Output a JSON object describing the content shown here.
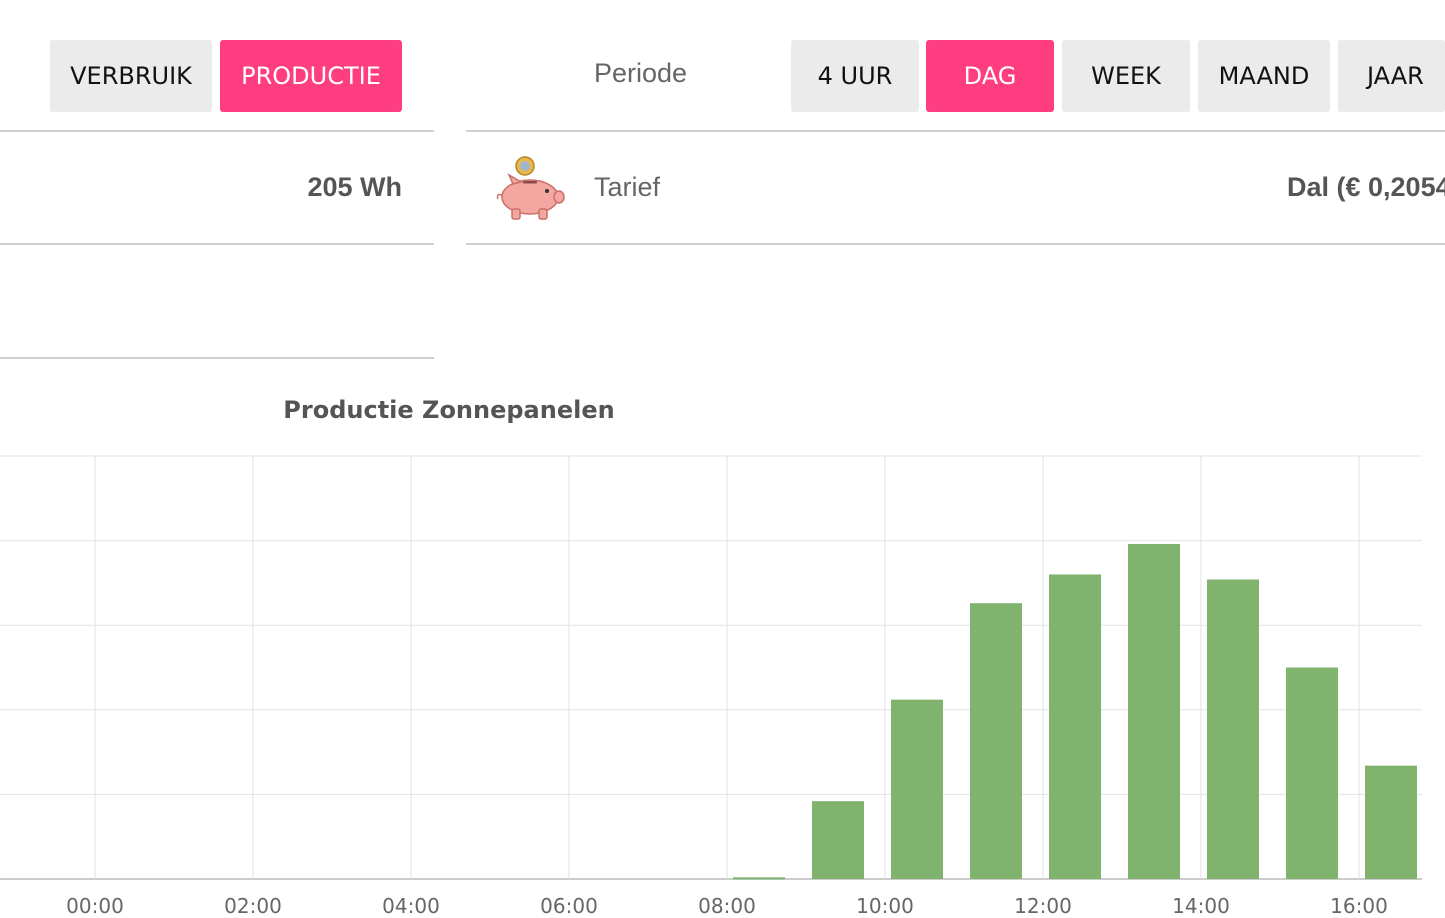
{
  "mode_tabs": [
    {
      "label": "VERBRUIK",
      "active": false
    },
    {
      "label": "PRODUCTIE",
      "active": true
    }
  ],
  "periode": {
    "label": "Periode",
    "options": [
      {
        "label": "4 UUR",
        "active": false
      },
      {
        "label": "DAG",
        "active": true
      },
      {
        "label": "WEEK",
        "active": false
      },
      {
        "label": "MAAND",
        "active": false
      },
      {
        "label": "JAAR",
        "active": false
      }
    ]
  },
  "summary": {
    "value": "205 Wh"
  },
  "tarief": {
    "icon": "piggy-bank-icon",
    "label": "Tarief",
    "value": "Dal (€ 0,2054"
  },
  "colors": {
    "accent": "#ff3d81",
    "bar": "#80b36e",
    "button_bg": "#ebebeb",
    "grid": "#e2e2e2"
  },
  "chart_data": {
    "type": "bar",
    "title": "Productie Zonnepanelen",
    "xlabel": "",
    "ylabel": "",
    "x_tick_labels": [
      "00:00",
      "02:00",
      "04:00",
      "06:00",
      "08:00",
      "10:00",
      "12:00",
      "14:00",
      "16:00"
    ],
    "categories": [
      "00:00",
      "01:00",
      "02:00",
      "03:00",
      "04:00",
      "05:00",
      "06:00",
      "07:00",
      "08:00",
      "09:00",
      "10:00",
      "11:00",
      "12:00",
      "13:00",
      "14:00",
      "15:00",
      "16:00"
    ],
    "values": [
      0,
      0,
      0,
      0,
      0,
      0,
      0,
      0,
      0.1,
      4.6,
      10.6,
      16.3,
      18.0,
      19.8,
      17.7,
      12.5,
      6.7
    ],
    "ylim": [
      0,
      25
    ],
    "grid": true,
    "y_tick_labels_visible": false
  }
}
